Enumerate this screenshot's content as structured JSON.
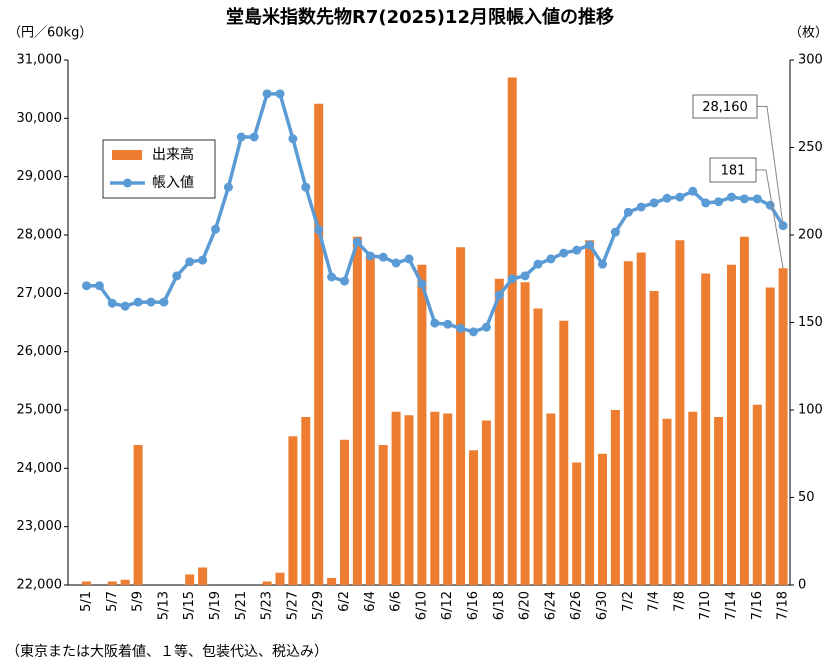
{
  "chart_data": {
    "type": "bar_line",
    "title": "堂島米指数先物R7(2025)12月限帳入値の推移",
    "ylabel": "（円／60kg）",
    "y2label": "（枚）",
    "footnote": "（東京または大阪着値、１等、包装代込、税込み）",
    "categories": [
      "5/1",
      null,
      "5/7",
      null,
      "5/9",
      null,
      "5/13",
      null,
      "5/15",
      null,
      "5/19",
      null,
      "5/21",
      null,
      "5/23",
      null,
      "5/27",
      null,
      "5/29",
      null,
      "6/2",
      null,
      "6/4",
      null,
      "6/6",
      null,
      "6/10",
      null,
      "6/12",
      null,
      "6/16",
      null,
      "6/18",
      null,
      "6/20",
      null,
      "6/24",
      null,
      "6/26",
      null,
      "6/30",
      null,
      "7/2",
      null,
      "7/4",
      null,
      "7/8",
      null,
      "7/10",
      null,
      "7/14",
      null,
      "7/16",
      null,
      "7/18"
    ],
    "series": [
      {
        "name": "出来高",
        "type": "bar",
        "axis": "y2",
        "color": "#ED7D31",
        "values": [
          2,
          0,
          2,
          3,
          80,
          0,
          0,
          0,
          6,
          10,
          0,
          0,
          0,
          0,
          2,
          7,
          85,
          96,
          275,
          4,
          83,
          199,
          188,
          80,
          99,
          97,
          183,
          99,
          98,
          193,
          77,
          94,
          175,
          290,
          173,
          158,
          98,
          151,
          70,
          197,
          75,
          100,
          185,
          190,
          168,
          95,
          197,
          99,
          178,
          96,
          183,
          199,
          103,
          170,
          181
        ]
      },
      {
        "name": "帳入値",
        "type": "line",
        "axis": "y",
        "color": "#5B9BD5",
        "values": [
          27130,
          27130,
          26830,
          26780,
          26850,
          26850,
          26850,
          27300,
          27540,
          27570,
          28100,
          28820,
          29680,
          29680,
          30420,
          30420,
          29650,
          28820,
          28090,
          27280,
          27210,
          27880,
          27640,
          27620,
          27520,
          27590,
          27160,
          26490,
          26470,
          26400,
          26340,
          26420,
          26970,
          27250,
          27300,
          27500,
          27590,
          27690,
          27740,
          27830,
          27500,
          28050,
          28390,
          28480,
          28550,
          28630,
          28650,
          28750,
          28550,
          28570,
          28650,
          28620,
          28620,
          28510,
          28160
        ]
      }
    ],
    "annotations": [
      {
        "label": "28,160"
      },
      {
        "label": "181"
      }
    ],
    "ylim": [
      22000,
      31000
    ],
    "yticks": [
      {
        "value": 22000,
        "label": "22,000"
      },
      {
        "value": 23000,
        "label": "23,000"
      },
      {
        "value": 24000,
        "label": "24,000"
      },
      {
        "value": 25000,
        "label": "25,000"
      },
      {
        "value": 26000,
        "label": "26,000"
      },
      {
        "value": 27000,
        "label": "27,000"
      },
      {
        "value": 28000,
        "label": "28,000"
      },
      {
        "value": 29000,
        "label": "29,000"
      },
      {
        "value": 30000,
        "label": "30,000"
      },
      {
        "value": 31000,
        "label": "31,000"
      }
    ],
    "y2lim": [
      0,
      300
    ],
    "y2ticks": [
      0,
      50,
      100,
      150,
      200,
      250,
      300
    ],
    "grid": false
  }
}
